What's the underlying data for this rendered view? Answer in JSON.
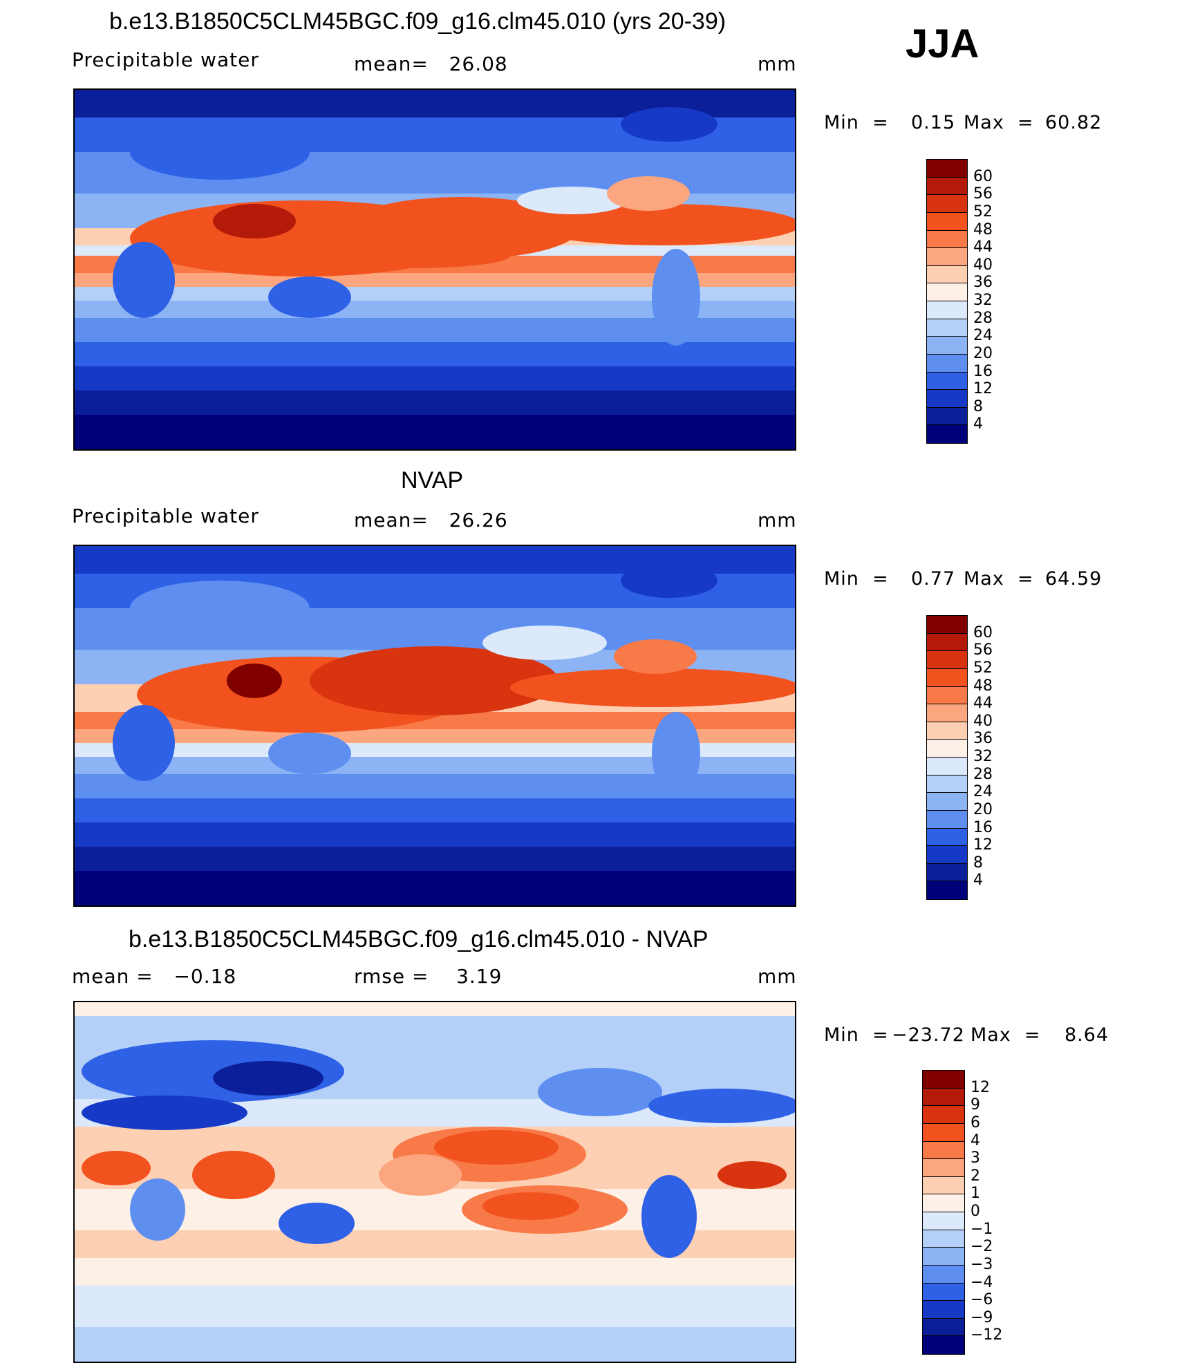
{
  "season": "JJA",
  "panels": [
    {
      "title": "b.e13.B1850C5CLM45BGC.f09_g16.clm45.010 (yrs 20-39)",
      "left_label": "Precipitable water",
      "center_label": "mean=   26.08",
      "units": "mm",
      "min_text": "Min  =",
      "min_value": "0.15",
      "max_text": "Max  =",
      "max_value": "60.82",
      "colorbar": {
        "labels": [
          "60",
          "56",
          "52",
          "48",
          "44",
          "40",
          "36",
          "32",
          "28",
          "24",
          "20",
          "16",
          "12",
          "8",
          "4"
        ],
        "colors": [
          "#800000",
          "#b41a0a",
          "#d8340f",
          "#f2531e",
          "#f77a48",
          "#fba67e",
          "#fdd0b4",
          "#fdf0e6",
          "#dbe9fb",
          "#b5d0f8",
          "#8cb4f4",
          "#5e8ff0",
          "#2f61e6",
          "#1639c6",
          "#0b1f9a",
          "#00007a"
        ]
      }
    },
    {
      "title": "NVAP",
      "left_label": "Precipitable water",
      "center_label": "mean=   26.26",
      "units": "mm",
      "min_text": "Min  =",
      "min_value": "0.77",
      "max_text": "Max  =",
      "max_value": "64.59",
      "colorbar": {
        "labels": [
          "60",
          "56",
          "52",
          "48",
          "44",
          "40",
          "36",
          "32",
          "28",
          "24",
          "20",
          "16",
          "12",
          "8",
          "4"
        ],
        "colors": [
          "#800000",
          "#b41a0a",
          "#d8340f",
          "#f2531e",
          "#f77a48",
          "#fba67e",
          "#fdd0b4",
          "#fdf0e6",
          "#dbe9fb",
          "#b5d0f8",
          "#8cb4f4",
          "#5e8ff0",
          "#2f61e6",
          "#1639c6",
          "#0b1f9a",
          "#00007a"
        ]
      }
    },
    {
      "title": "b.e13.B1850C5CLM45BGC.f09_g16.clm45.010 - NVAP",
      "left_label": "mean =   −0.18",
      "center_label": "rmse =    3.19",
      "units": "mm",
      "min_text": "Min  =",
      "min_value": "−23.72",
      "max_text": "Max  =",
      "max_value": "8.64",
      "colorbar": {
        "labels": [
          "12",
          "9",
          "6",
          "4",
          "3",
          "2",
          "1",
          "0",
          "−1",
          "−2",
          "−3",
          "−4",
          "−6",
          "−9",
          "−12"
        ],
        "colors": [
          "#800000",
          "#b41a0a",
          "#d8340f",
          "#f2531e",
          "#f77a48",
          "#fba67e",
          "#fdd0b4",
          "#fdf0e6",
          "#dbe9fb",
          "#b5d0f8",
          "#8cb4f4",
          "#5e8ff0",
          "#2f61e6",
          "#1639c6",
          "#0b1f9a",
          "#00007a"
        ]
      }
    }
  ]
}
